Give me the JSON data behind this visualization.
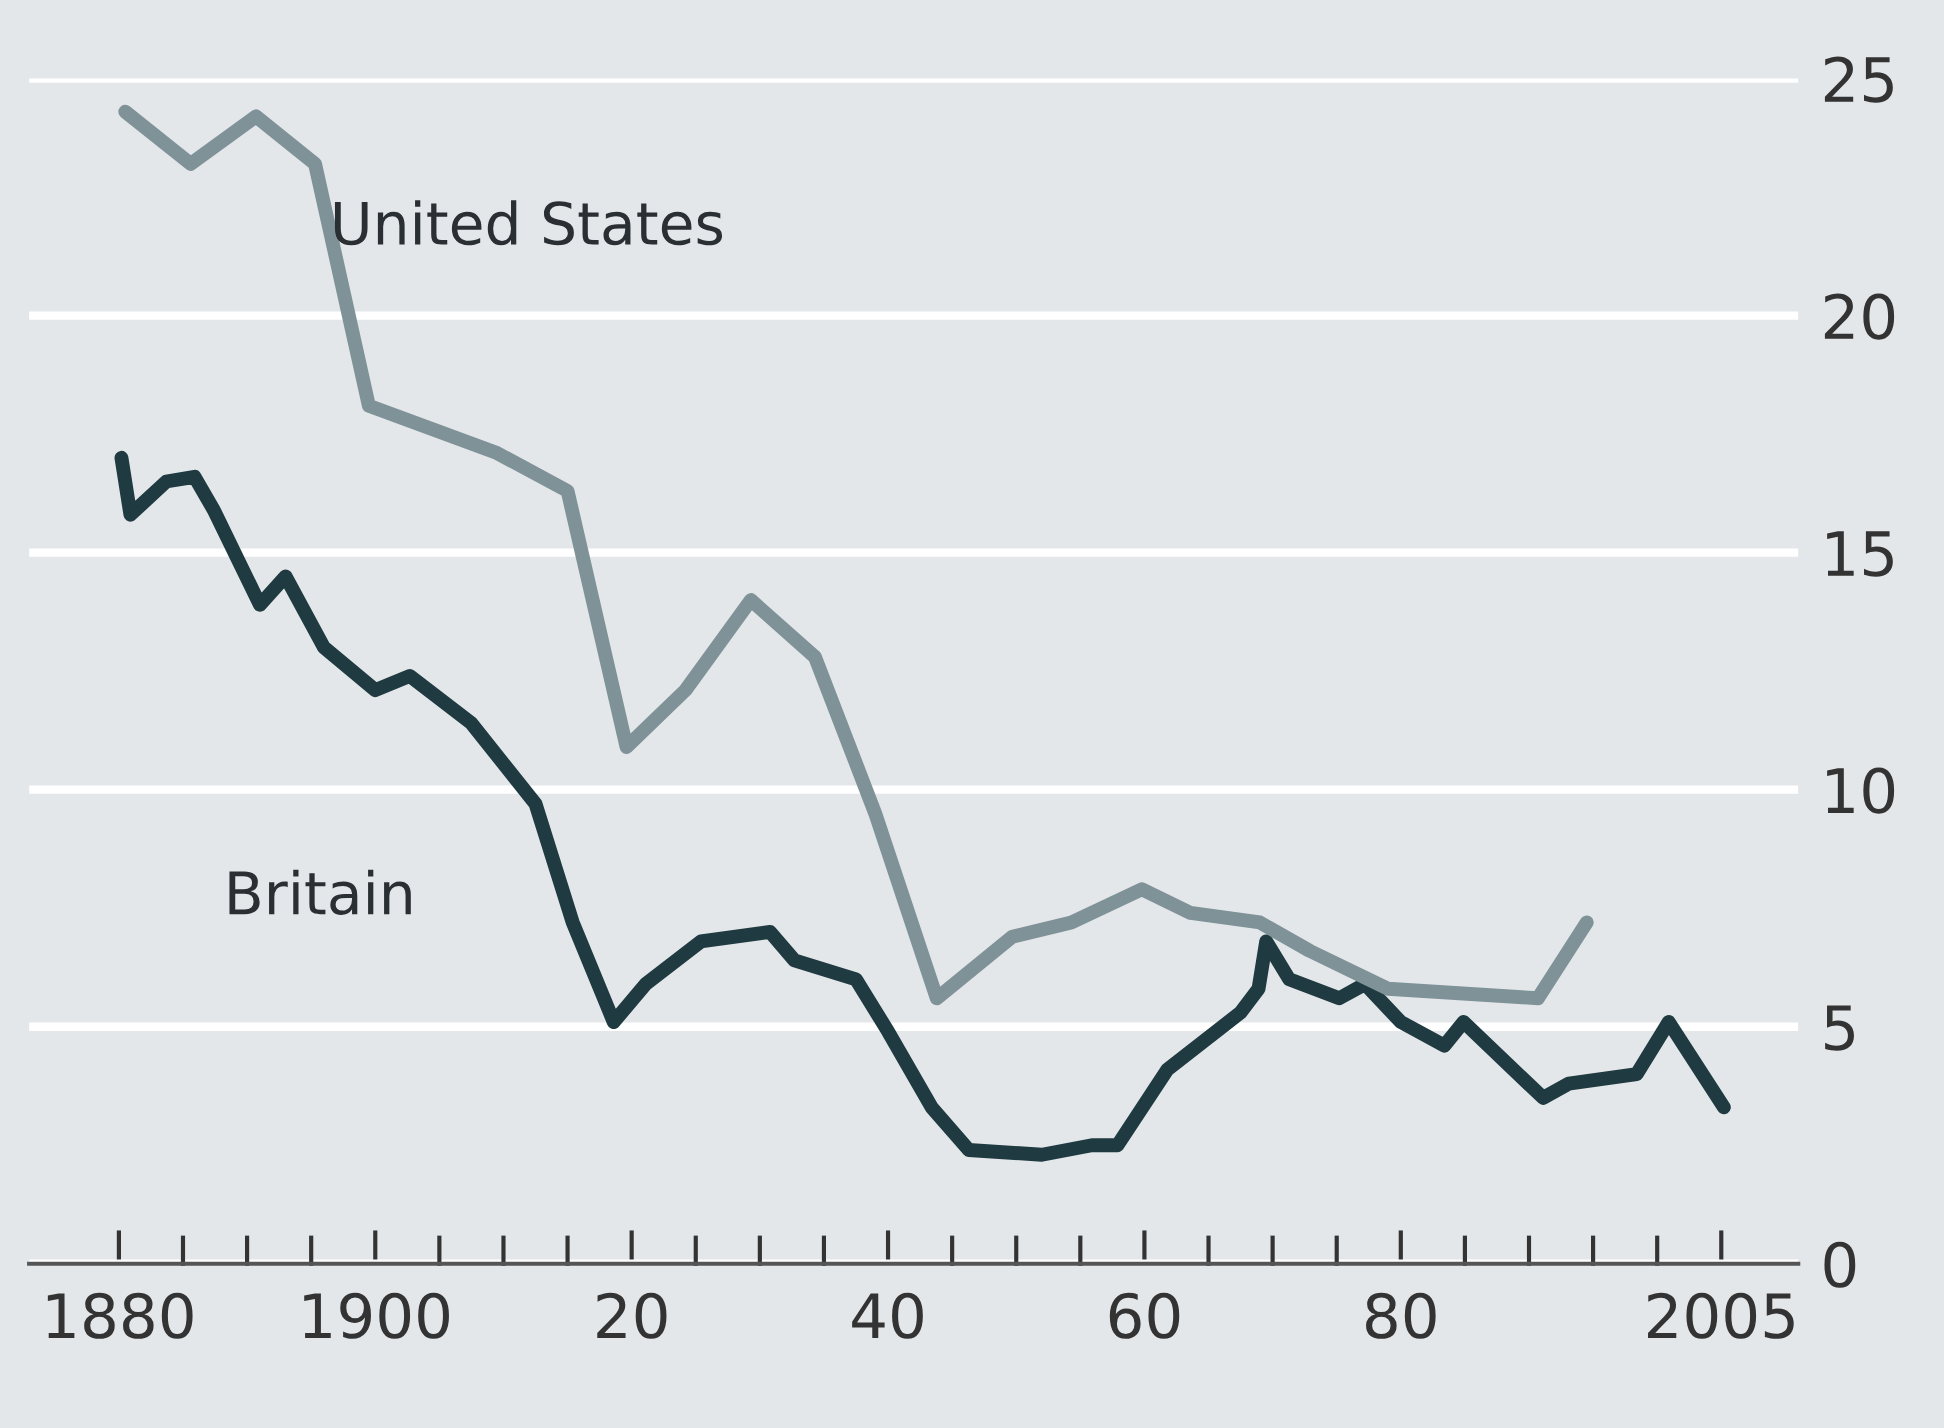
{
  "chart_data": {
    "type": "line",
    "xlim": [
      1873,
      2011
    ],
    "ylim": [
      0,
      25
    ],
    "xticks": [
      {
        "value": 1880,
        "label": "1880"
      },
      {
        "value": 1885,
        "label": null
      },
      {
        "value": 1890,
        "label": null
      },
      {
        "value": 1895,
        "label": null
      },
      {
        "value": 1900,
        "label": "1900"
      },
      {
        "value": 1905,
        "label": null
      },
      {
        "value": 1910,
        "label": null
      },
      {
        "value": 1915,
        "label": null
      },
      {
        "value": 1920,
        "label": "20"
      },
      {
        "value": 1925,
        "label": null
      },
      {
        "value": 1930,
        "label": null
      },
      {
        "value": 1935,
        "label": null
      },
      {
        "value": 1940,
        "label": "40"
      },
      {
        "value": 1945,
        "label": null
      },
      {
        "value": 1950,
        "label": null
      },
      {
        "value": 1955,
        "label": null
      },
      {
        "value": 1960,
        "label": "60"
      },
      {
        "value": 1965,
        "label": null
      },
      {
        "value": 1970,
        "label": null
      },
      {
        "value": 1975,
        "label": null
      },
      {
        "value": 1980,
        "label": "80"
      },
      {
        "value": 1985,
        "label": null
      },
      {
        "value": 1990,
        "label": null
      },
      {
        "value": 1995,
        "label": null
      },
      {
        "value": 2000,
        "label": null
      },
      {
        "value": 2005,
        "label": "2005"
      }
    ],
    "yticks": [
      0,
      5,
      10,
      15,
      20,
      25
    ],
    "grid": "y",
    "legend": false,
    "marker": "none",
    "line_style": "solid",
    "series": [
      {
        "name": "United States",
        "color": "#7f9298",
        "x": [
          1880.5,
          1885.6,
          1890.7,
          1895.3,
          1899.5,
          1909.5,
          1915,
          1919.6,
          1924.2,
          1929.3,
          1934.3,
          1939,
          1943.8,
          1949.7,
          1954.3,
          1959.8,
          1963.6,
          1969,
          1972.9,
          1979,
          1990.7,
          1994.5
        ],
        "values": [
          24.3,
          23.2,
          24.2,
          23.2,
          18.1,
          17.1,
          16.3,
          10.9,
          12.1,
          14.0,
          12.8,
          9.5,
          5.6,
          6.9,
          7.2,
          7.9,
          7.4,
          7.2,
          6.6,
          5.8,
          5.6,
          7.2
        ]
      },
      {
        "name": "Britain",
        "color": "#1f3a40",
        "x": [
          1880.2,
          1880.9,
          1883.7,
          1885.9,
          1887.4,
          1891,
          1893,
          1896,
          1900,
          1902.7,
          1907.5,
          1912.5,
          1915.4,
          1918.6,
          1921.1,
          1925.4,
          1930.8,
          1932.7,
          1937.5,
          1940,
          1943.4,
          1946.3,
          1952,
          1955.9,
          1957.9,
          1961.8,
          1967.5,
          1968.9,
          1969.5,
          1971.3,
          1975.2,
          1977.2,
          1980,
          1983.4,
          1984.9,
          1991.1,
          1993.1,
          1998.4,
          2000.9,
          2005.2
        ],
        "values": [
          17.0,
          15.8,
          16.5,
          16.6,
          15.9,
          13.9,
          14.5,
          13.0,
          12.1,
          12.4,
          11.4,
          9.7,
          7.2,
          5.1,
          5.9,
          6.8,
          7.0,
          6.4,
          6.0,
          4.9,
          3.3,
          2.4,
          2.3,
          2.5,
          2.5,
          4.1,
          5.3,
          5.8,
          6.8,
          6.0,
          5.6,
          5.9,
          5.1,
          4.6,
          5.1,
          3.5,
          3.8,
          4.0,
          5.1,
          3.3
        ]
      }
    ]
  }
}
